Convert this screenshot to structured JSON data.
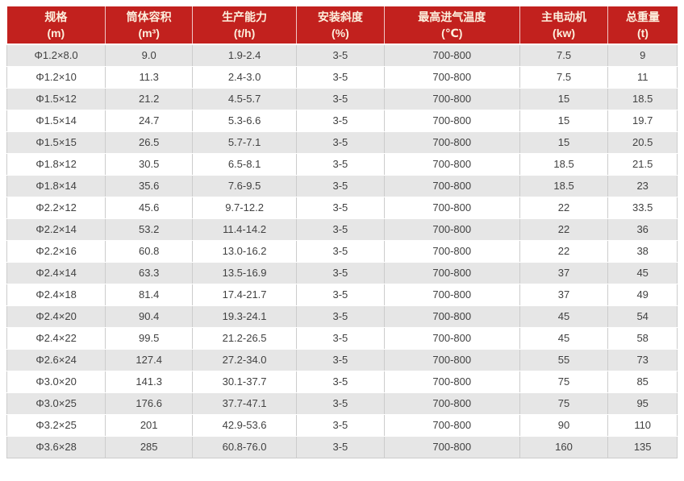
{
  "colors": {
    "header_bg": "#c2211e",
    "header_text": "#fcefdd",
    "row_alt_bg": "#e6e6e6",
    "row_bg": "#ffffff",
    "body_text": "#414141",
    "grid_line": "#cccccc"
  },
  "chart_data": {
    "type": "table",
    "columns": [
      {
        "name": "规格",
        "unit": "(m)"
      },
      {
        "name": "筒体容积",
        "unit": "(m³)"
      },
      {
        "name": "生产能力",
        "unit": "(t/h)"
      },
      {
        "name": "安装斜度",
        "unit": "(%)"
      },
      {
        "name": "最高进气温度",
        "unit": "(℃)"
      },
      {
        "name": "主电动机",
        "unit": "(kw)"
      },
      {
        "name": "总重量",
        "unit": "(t)"
      }
    ],
    "rows": [
      [
        "Φ1.2×8.0",
        "9.0",
        "1.9-2.4",
        "3-5",
        "700-800",
        "7.5",
        "9"
      ],
      [
        "Φ1.2×10",
        "11.3",
        "2.4-3.0",
        "3-5",
        "700-800",
        "7.5",
        "11"
      ],
      [
        "Φ1.5×12",
        "21.2",
        "4.5-5.7",
        "3-5",
        "700-800",
        "15",
        "18.5"
      ],
      [
        "Φ1.5×14",
        "24.7",
        "5.3-6.6",
        "3-5",
        "700-800",
        "15",
        "19.7"
      ],
      [
        "Φ1.5×15",
        "26.5",
        "5.7-7.1",
        "3-5",
        "700-800",
        "15",
        "20.5"
      ],
      [
        "Φ1.8×12",
        "30.5",
        "6.5-8.1",
        "3-5",
        "700-800",
        "18.5",
        "21.5"
      ],
      [
        "Φ1.8×14",
        "35.6",
        "7.6-9.5",
        "3-5",
        "700-800",
        "18.5",
        "23"
      ],
      [
        "Φ2.2×12",
        "45.6",
        "9.7-12.2",
        "3-5",
        "700-800",
        "22",
        "33.5"
      ],
      [
        "Φ2.2×14",
        "53.2",
        "11.4-14.2",
        "3-5",
        "700-800",
        "22",
        "36"
      ],
      [
        "Φ2.2×16",
        "60.8",
        "13.0-16.2",
        "3-5",
        "700-800",
        "22",
        "38"
      ],
      [
        "Φ2.4×14",
        "63.3",
        "13.5-16.9",
        "3-5",
        "700-800",
        "37",
        "45"
      ],
      [
        "Φ2.4×18",
        "81.4",
        "17.4-21.7",
        "3-5",
        "700-800",
        "37",
        "49"
      ],
      [
        "Φ2.4×20",
        "90.4",
        "19.3-24.1",
        "3-5",
        "700-800",
        "45",
        "54"
      ],
      [
        "Φ2.4×22",
        "99.5",
        "21.2-26.5",
        "3-5",
        "700-800",
        "45",
        "58"
      ],
      [
        "Φ2.6×24",
        "127.4",
        "27.2-34.0",
        "3-5",
        "700-800",
        "55",
        "73"
      ],
      [
        "Φ3.0×20",
        "141.3",
        "30.1-37.7",
        "3-5",
        "700-800",
        "75",
        "85"
      ],
      [
        "Φ3.0×25",
        "176.6",
        "37.7-47.1",
        "3-5",
        "700-800",
        "75",
        "95"
      ],
      [
        "Φ3.2×25",
        "201",
        "42.9-53.6",
        "3-5",
        "700-800",
        "90",
        "110"
      ],
      [
        "Φ3.6×28",
        "285",
        "60.8-76.0",
        "3-5",
        "700-800",
        "160",
        "135"
      ]
    ]
  }
}
